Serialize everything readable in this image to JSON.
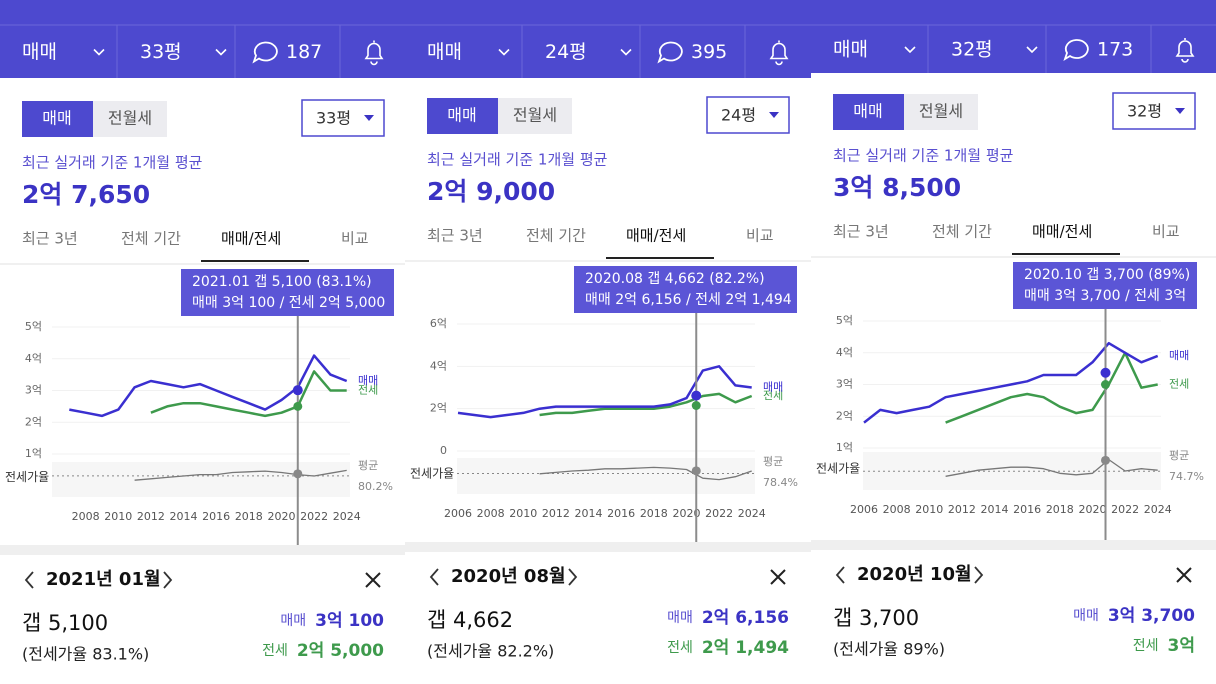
{
  "panels": [
    {
      "header": {
        "trade": "매매",
        "size": "33평",
        "comments": "187"
      },
      "toggle": [
        "매매",
        "전월세"
      ],
      "toggle_selected": 0,
      "dropdown": "33평",
      "avg_label": "최근 실거래 기준 1개월 평균",
      "avg_price": "2억 7,650",
      "tabs": [
        "최근 3년",
        "전체 기간",
        "매매/전세",
        "비교"
      ],
      "selected_tab": 2,
      "chart": {
        "type": "line",
        "tooltip": [
          "2021.01 갭 5,100 (83.1%)",
          "매매 3억 100 / 전세 2억 5,000"
        ],
        "ylim": [
          1,
          5
        ],
        "yticks": [
          {
            "value": 1,
            "label": "1억"
          },
          {
            "value": 2,
            "label": "2억"
          },
          {
            "value": 3,
            "label": "3억"
          },
          {
            "value": 4,
            "label": "4억"
          },
          {
            "value": 5,
            "label": "5억"
          }
        ],
        "xlim": [
          2005.94,
          2024.2
        ],
        "xticks": [
          2008,
          2010,
          2012,
          2014,
          2016,
          2018,
          2020,
          2022,
          2024
        ],
        "x": [
          2007,
          2008,
          2009,
          2010,
          2011,
          2012,
          2013,
          2014,
          2015,
          2016,
          2017,
          2018,
          2019,
          2020,
          2021,
          2022,
          2023,
          2024
        ],
        "series": [
          {
            "name": "매매",
            "color": "#3a2fd0",
            "values": [
              2.4,
              2.3,
              2.2,
              2.4,
              3.1,
              3.3,
              3.2,
              3.1,
              3.2,
              3.0,
              2.8,
              2.6,
              2.4,
              2.7,
              3.1,
              4.1,
              3.5,
              3.3
            ]
          },
          {
            "name": "전세",
            "color": "#3e9a4c",
            "values": [
              null,
              null,
              null,
              null,
              null,
              2.3,
              2.5,
              2.6,
              2.6,
              2.5,
              2.4,
              2.3,
              2.2,
              2.3,
              2.5,
              3.6,
              3.0,
              3.0
            ]
          }
        ],
        "ratio": {
          "label": "전세가율",
          "avg_title": "평균",
          "avg": 80.2,
          "avg_label": "80.2%",
          "ylim": [
            50,
            100
          ],
          "values": [
            null,
            null,
            null,
            null,
            74,
            76,
            78,
            80,
            82,
            82,
            85,
            86,
            87,
            85,
            82,
            80,
            84,
            88
          ]
        },
        "cursor": {
          "x": 2021.0,
          "sale": 3.01,
          "jeonse": 2.5,
          "ratio": 83.1
        }
      },
      "detail": {
        "month": "2021년 01월",
        "gap": "갭 5,100",
        "ratio": "(전세가율 83.1%)",
        "sale_label": "매매",
        "sale": "3억 100",
        "jeonse_label": "전세",
        "jeonse": "2억 5,000"
      }
    },
    {
      "header": {
        "trade": "매매",
        "size": "24평",
        "comments": "395"
      },
      "toggle": [
        "매매",
        "전월세"
      ],
      "toggle_selected": 0,
      "dropdown": "24평",
      "avg_label": "최근 실거래 기준 1개월 평균",
      "avg_price": "2억 9,000",
      "tabs": [
        "최근 3년",
        "전체 기간",
        "매매/전세",
        "비교"
      ],
      "selected_tab": 2,
      "chart": {
        "type": "line",
        "tooltip": [
          "2020.08 갭 4,662 (82.2%)",
          "매매 2억 6,156 / 전세 2억 1,494"
        ],
        "ylim": [
          0,
          6
        ],
        "yticks": [
          0,
          {
            "value": 2,
            "label": "2억"
          },
          {
            "value": 4,
            "label": "4억"
          },
          {
            "value": 6,
            "label": "6억"
          }
        ],
        "xlim": [
          2005.94,
          2024.2
        ],
        "xticks": [
          2006,
          2008,
          2010,
          2012,
          2014,
          2016,
          2018,
          2020,
          2022,
          2024
        ],
        "x": [
          2006,
          2007,
          2008,
          2009,
          2010,
          2011,
          2012,
          2013,
          2014,
          2015,
          2016,
          2017,
          2018,
          2019,
          2020,
          2021,
          2022,
          2023,
          2024
        ],
        "series": [
          {
            "name": "매매",
            "color": "#3a2fd0",
            "values": [
              1.8,
              1.7,
              1.6,
              1.7,
              1.8,
              2.0,
              2.1,
              2.1,
              2.1,
              2.1,
              2.1,
              2.1,
              2.1,
              2.2,
              2.5,
              3.8,
              4.0,
              3.1,
              3.0
            ]
          },
          {
            "name": "전세",
            "color": "#3e9a4c",
            "values": [
              null,
              null,
              null,
              null,
              null,
              1.7,
              1.8,
              1.8,
              1.9,
              2.0,
              2.0,
              2.0,
              2.0,
              2.1,
              2.3,
              2.6,
              2.7,
              2.3,
              2.6
            ]
          }
        ],
        "ratio": {
          "label": "전세가율",
          "avg_title": "평균",
          "avg": 78.4,
          "avg_label": "78.4%",
          "ylim": [
            50,
            100
          ],
          "values": [
            null,
            null,
            null,
            null,
            null,
            78,
            80,
            82,
            83,
            85,
            85,
            86,
            87,
            86,
            84,
            72,
            70,
            74,
            82
          ]
        },
        "cursor": {
          "x": 2020.6,
          "sale": 2.6156,
          "jeonse": 2.1494,
          "ratio": 82.2
        }
      },
      "detail": {
        "month": "2020년 08월",
        "gap": "갭 4,662",
        "ratio": "(전세가율 82.2%)",
        "sale_label": "매매",
        "sale": "2억 6,156",
        "jeonse_label": "전세",
        "jeonse": "2억 1,494"
      }
    },
    {
      "header": {
        "trade": "매매",
        "size": "32평",
        "comments": "173"
      },
      "toggle": [
        "매매",
        "전월세"
      ],
      "toggle_selected": 0,
      "dropdown": "32평",
      "avg_label": "최근 실거래 기준 1개월 평균",
      "avg_price": "3억 8,500",
      "tabs": [
        "최근 3년",
        "전체 기간",
        "매매/전세",
        "비교"
      ],
      "selected_tab": 2,
      "chart": {
        "type": "line",
        "tooltip": [
          "2020.10 갭 3,700 (89%)",
          "매매 3억 3,700 / 전세 3억"
        ],
        "ylim": [
          1,
          5
        ],
        "yticks": [
          {
            "value": 1,
            "label": "1억"
          },
          {
            "value": 2,
            "label": "2억"
          },
          {
            "value": 3,
            "label": "3억"
          },
          {
            "value": 4,
            "label": "4억"
          },
          {
            "value": 5,
            "label": "5억"
          }
        ],
        "xlim": [
          2005.94,
          2024.2
        ],
        "xticks": [
          2006,
          2008,
          2010,
          2012,
          2014,
          2016,
          2018,
          2020,
          2022,
          2024
        ],
        "x": [
          2006,
          2007,
          2008,
          2009,
          2010,
          2011,
          2012,
          2013,
          2014,
          2015,
          2016,
          2017,
          2018,
          2019,
          2020,
          2021,
          2022,
          2023,
          2024
        ],
        "series": [
          {
            "name": "매매",
            "color": "#3a2fd0",
            "values": [
              1.8,
              2.2,
              2.1,
              2.2,
              2.3,
              2.6,
              2.7,
              2.8,
              2.9,
              3.0,
              3.1,
              3.3,
              3.3,
              3.3,
              3.7,
              4.3,
              4.0,
              3.7,
              3.9
            ]
          },
          {
            "name": "전세",
            "color": "#3e9a4c",
            "values": [
              null,
              null,
              null,
              null,
              null,
              1.8,
              2.0,
              2.2,
              2.4,
              2.6,
              2.7,
              2.6,
              2.3,
              2.1,
              2.2,
              3.0,
              4.0,
              2.9,
              3.0
            ]
          }
        ],
        "ratio": {
          "label": "전세가율",
          "avg_title": "평균",
          "avg": 74.7,
          "avg_label": "74.7%",
          "ylim": [
            50,
            100
          ],
          "values": [
            null,
            null,
            null,
            null,
            null,
            68,
            72,
            76,
            78,
            80,
            80,
            78,
            72,
            70,
            72,
            90,
            75,
            78,
            76
          ]
        },
        "cursor": {
          "x": 2020.8,
          "sale": 3.37,
          "jeonse": 3.0,
          "ratio": 89
        }
      },
      "detail": {
        "month": "2020년 10월",
        "gap": "갭 3,700",
        "ratio": "(전세가율 89%)",
        "sale_label": "매매",
        "sale": "3억 3,700",
        "jeonse_label": "전세",
        "jeonse": "3억"
      }
    }
  ]
}
